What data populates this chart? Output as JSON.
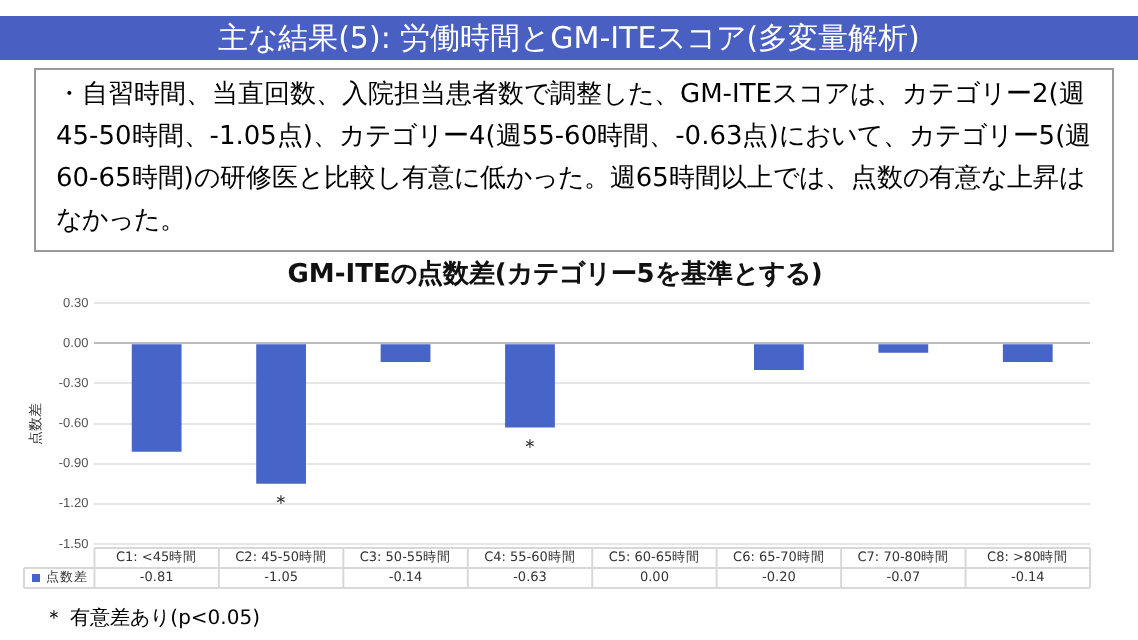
{
  "chart_data": {
    "type": "bar",
    "title": "主な結果(5): 労働時間とGM-ITEスコア(多変量解析)",
    "subtitle": "GM-ITEの点数差(カテゴリー5を基準とする)",
    "ylabel": "点数差",
    "categories": [
      "C1: <45時間",
      "C2: 45-50時間",
      "C3: 50-55時間",
      "C4: 55-60時間",
      "C5: 60-65時間",
      "C6: 65-70時間",
      "C7: 70-80時間",
      "C8: >80時間"
    ],
    "series": [
      {
        "name": "点数差",
        "color": "#4764c8",
        "values": [
          -0.81,
          -1.05,
          -0.14,
          -0.63,
          0,
          -0.2,
          -0.07,
          -0.14
        ],
        "value_labels": [
          "-0.81",
          "-1.05",
          "-0.14",
          "-0.63",
          "0.00",
          "-0.20",
          "-0.07",
          "-0.14"
        ]
      }
    ],
    "ylim": [
      -1.5,
      0.3
    ],
    "yticks": [
      {
        "value": 0.3,
        "label": "0.30"
      },
      {
        "value": 0,
        "label": "0.00"
      },
      {
        "value": -0.3,
        "label": "-0.30"
      },
      {
        "value": -0.6,
        "label": "-0.60"
      },
      {
        "value": -0.9,
        "label": "-0.90"
      },
      {
        "value": -1.2,
        "label": "-1.20"
      },
      {
        "value": -1.5,
        "label": "-1.50"
      }
    ],
    "grid": "y",
    "legend": "bottom left",
    "annotations": [
      "・自習時間、当直回数、入院担当患者数で調整した、GM-ITEスコアは、カテゴリー2(週45-50時間、-1.05点)、カテゴリー4(週55-60時間、-0.63点)において、カテゴリー5(週60-65時間)の研修医と比較し有意に低かった。週65時間以上では、点数の有意な上昇はなかった。",
      {
        "text": "＊",
        "x": "C2: 45-50時間",
        "y": -1.05
      },
      {
        "text": "＊",
        "x": "C4: 55-60時間",
        "y": -0.63
      },
      "＊ 有意差あり(p<0.05)"
    ]
  }
}
